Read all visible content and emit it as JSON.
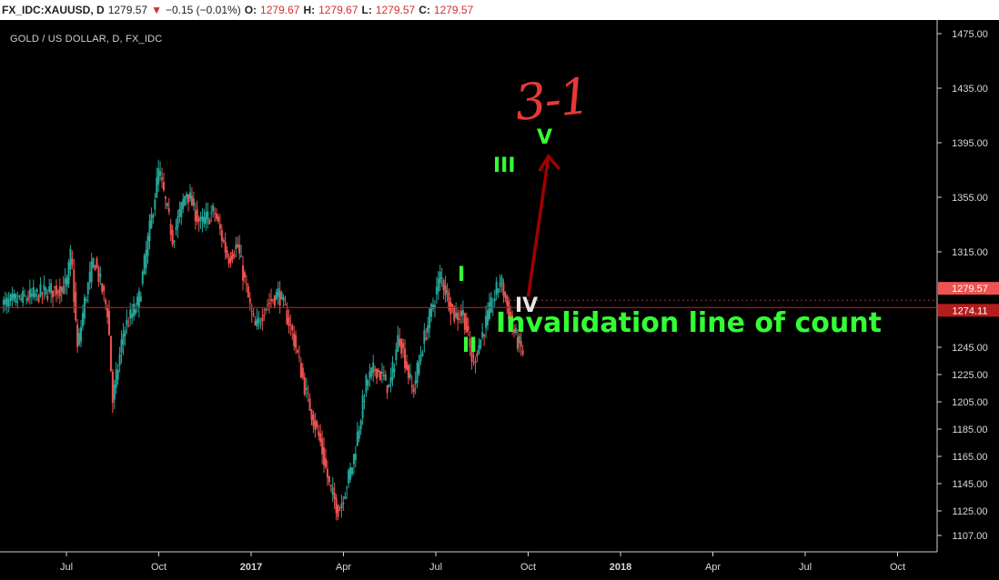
{
  "header": {
    "symbol": "FX_IDC:XAUUSD, D",
    "last": "1279.57",
    "change": "−0.15 (−0.01%)",
    "o_label": "O:",
    "o_value": "1279.67",
    "h_label": "H:",
    "h_value": "1279.67",
    "l_label": "L:",
    "l_value": "1279.57",
    "c_label": "C:",
    "c_value": "1279.57"
  },
  "chart_data": {
    "type": "candlestick",
    "title": "GOLD / US DOLLAR, D, FX_IDC",
    "x_ticks": [
      "Jul",
      "Oct",
      "2017",
      "Apr",
      "Jul",
      "Oct",
      "2018",
      "Apr",
      "Jul",
      "Oct"
    ],
    "y_ticks": [
      "1475.00",
      "1435.00",
      "1395.00",
      "1355.00",
      "1315.00",
      "1245.00",
      "1225.00",
      "1205.00",
      "1185.00",
      "1165.00",
      "1145.00",
      "1125.00",
      "1107.00"
    ],
    "ylim": [
      1095,
      1485
    ],
    "grid": false,
    "price_path": [
      [
        0,
        1290
      ],
      [
        0.05,
        1315
      ],
      [
        0.12,
        1243
      ],
      [
        0.2,
        1280
      ],
      [
        0.3,
        1310
      ],
      [
        0.45,
        1270
      ],
      [
        0.5,
        1205
      ],
      [
        0.62,
        1258
      ],
      [
        0.78,
        1278
      ],
      [
        1.0,
        1375
      ],
      [
        1.15,
        1325
      ],
      [
        1.3,
        1360
      ],
      [
        1.45,
        1335
      ],
      [
        1.6,
        1345
      ],
      [
        1.75,
        1310
      ],
      [
        1.85,
        1320
      ],
      [
        2.0,
        1270
      ],
      [
        2.05,
        1258
      ],
      [
        2.15,
        1275
      ],
      [
        2.3,
        1285
      ],
      [
        2.45,
        1255
      ],
      [
        2.6,
        1210
      ],
      [
        2.75,
        1175
      ],
      [
        2.85,
        1142
      ],
      [
        2.95,
        1125
      ],
      [
        3.1,
        1160
      ],
      [
        3.25,
        1220
      ],
      [
        3.35,
        1230
      ],
      [
        3.5,
        1215
      ],
      [
        3.6,
        1255
      ],
      [
        3.75,
        1212
      ],
      [
        3.85,
        1245
      ],
      [
        4.05,
        1298
      ],
      [
        4.2,
        1268
      ],
      [
        4.3,
        1270
      ],
      [
        4.4,
        1233
      ],
      [
        4.55,
        1265
      ],
      [
        4.7,
        1295
      ],
      [
        4.85,
        1255
      ],
      [
        4.95,
        1240
      ],
      [
        5.05,
        1210
      ],
      [
        5.15,
        1230
      ],
      [
        5.3,
        1270
      ],
      [
        5.45,
        1260
      ],
      [
        5.6,
        1300
      ],
      [
        5.7,
        1350
      ],
      [
        5.75,
        1320
      ],
      [
        5.9,
        1305
      ],
      [
        6.0,
        1282
      ]
    ],
    "horizontal_lines": [
      {
        "price": 1274.11,
        "label": "1274.11",
        "color": "#b71c1c"
      },
      {
        "price": 1279.57,
        "label": "1279.57",
        "color": "#ef5350"
      }
    ],
    "wave_labels": [
      "I",
      "II",
      "III",
      "IV",
      "V"
    ],
    "annotation": "Invalidation line of count",
    "hand_note": "3-1",
    "projection_arrow_color": "#a00000"
  }
}
